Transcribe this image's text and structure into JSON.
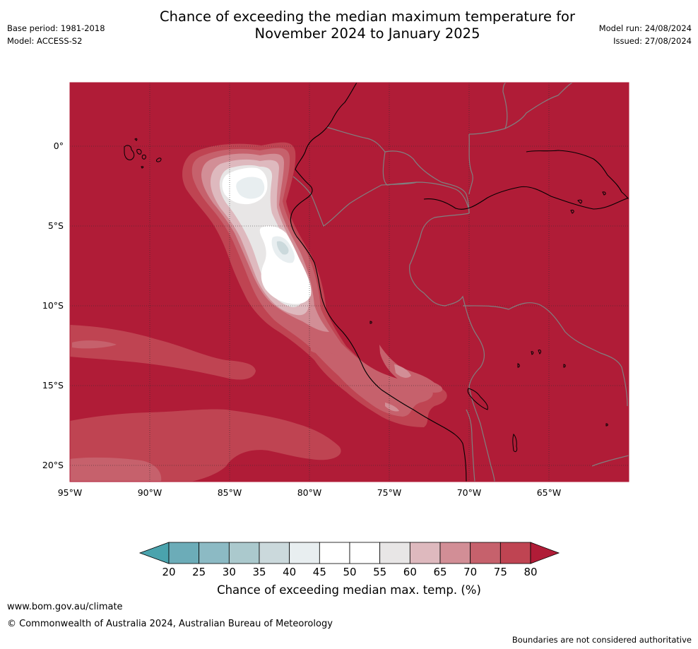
{
  "header": {
    "title_line1": "Chance of exceeding the median maximum temperature for",
    "title_line2": "November 2024 to January 2025",
    "base_period": "Base period: 1981-2018",
    "model": "Model: ACCESS-S2",
    "model_run": "Model run: 24/08/2024",
    "issued": "Issued: 27/08/2024"
  },
  "map": {
    "lat_labels": [
      "0°",
      "5°S",
      "10°S",
      "15°S",
      "20°S"
    ],
    "lon_labels": [
      "95°W",
      "90°W",
      "85°W",
      "80°W",
      "75°W",
      "70°W",
      "65°W"
    ],
    "colors": {
      "background": "#b01c37",
      "coast": "#000000",
      "border": "#808080",
      "grid": "#333333"
    }
  },
  "colorbar": {
    "ticks": [
      "20",
      "25",
      "30",
      "35",
      "40",
      "45",
      "50",
      "55",
      "60",
      "65",
      "70",
      "75",
      "80"
    ],
    "label": "Chance of exceeding median max. temp. (%)",
    "colors": [
      "#4aa3ad",
      "#6cacb8",
      "#8cbac4",
      "#abc9cd",
      "#cbd9dc",
      "#e8eef0",
      "#ffffff",
      "#ffffff",
      "#e8e6e6",
      "#deb9be",
      "#d28e96",
      "#c6616c",
      "#bf4452",
      "#b01c37"
    ]
  },
  "footer": {
    "url": "www.bom.gov.au/climate",
    "copyright": "© Commonwealth of Australia 2024, Australian Bureau of Meteorology",
    "disclaimer": "Boundaries are not considered authoritative"
  }
}
